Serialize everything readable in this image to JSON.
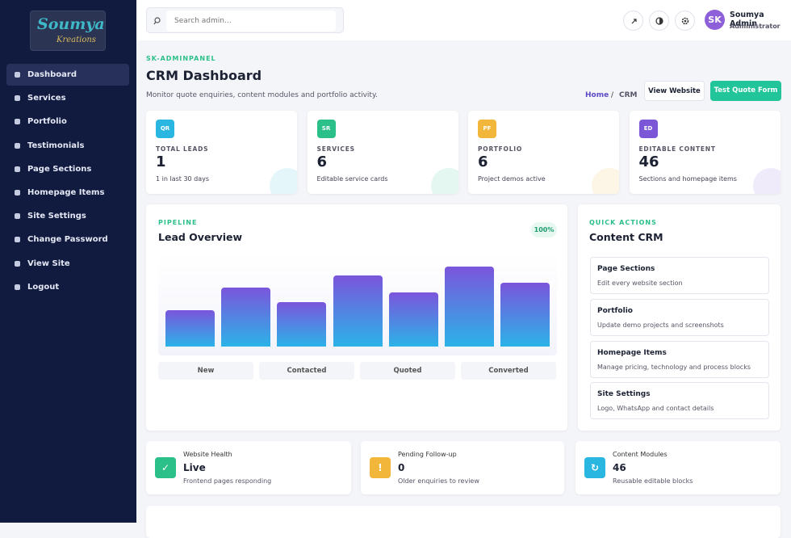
{
  "sidebar": {
    "logo_text": "Soumya",
    "logo_subtext": "Kreations",
    "nav": [
      "Dashboard",
      "Services",
      "Portfolio",
      "Testimonials",
      "Page Sections",
      "Homepage Items",
      "Site Settings",
      "Change Password",
      "View Site",
      "Logout"
    ]
  },
  "topbar": {
    "search_placeholder": "Search admin...",
    "user_initials": "SK",
    "user_name": "Soumya Admin",
    "user_role": "Administrator"
  },
  "header": {
    "eyebrow": "SK-ADMINPANEL",
    "title": "CRM Dashboard",
    "subtitle": "Monitor quote enquiries, content modules and portfolio activity.",
    "breadcrumb": [
      "Home",
      "/",
      "CRM"
    ],
    "buttons": [
      "View Website",
      "Test Quote Form"
    ]
  },
  "stats": [
    {
      "badge": "QR",
      "label": "TOTAL LEADS",
      "value": 1,
      "note": "1 in last 30 days"
    },
    {
      "badge": "SR",
      "label": "SERVICES",
      "value": 6,
      "note": "Editable service cards"
    },
    {
      "badge": "PF",
      "label": "PORTFOLIO",
      "value": 6,
      "note": "Project demos active"
    },
    {
      "badge": "ED",
      "label": "EDITABLE CONTENT",
      "value": 46,
      "note": "Sections and homepage items"
    }
  ],
  "chart": {
    "eyebrow": "PIPELINE",
    "title": "Lead Overview",
    "badge": "100%",
    "bars": [
      39,
      63,
      47,
      76,
      58,
      85,
      68
    ],
    "labels": [
      "New",
      "Contacted",
      "Quoted",
      "Converted"
    ]
  },
  "quick": {
    "eyebrow": "QUICK ACTIONS",
    "title": "Content CRM",
    "items": [
      {
        "title": "Page Sections",
        "desc": "Edit every website section"
      },
      {
        "title": "Portfolio",
        "desc": "Update demo projects and screenshots"
      },
      {
        "title": "Homepage Items",
        "desc": "Manage pricing, technology and process blocks"
      },
      {
        "title": "Site Settings",
        "desc": "Logo, WhatsApp and contact details"
      }
    ]
  },
  "health": [
    {
      "icon": "✓",
      "title": "Website Health",
      "value": "Live",
      "note": "Frontend pages responding"
    },
    {
      "icon": "!",
      "title": "Pending Follow-up",
      "value": 0,
      "note": "Older enquiries to review"
    },
    {
      "icon": "↻",
      "title": "Content Modules",
      "value": 46,
      "note": "Reusable editable blocks"
    }
  ]
}
